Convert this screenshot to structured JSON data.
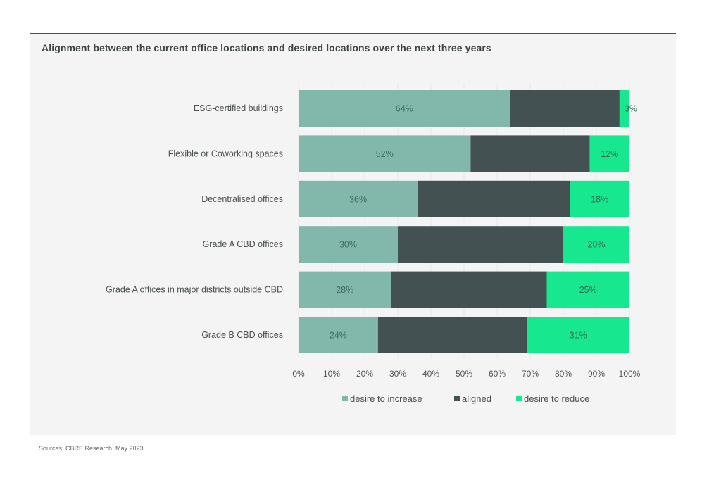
{
  "chart_data": {
    "type": "bar",
    "orientation": "horizontal",
    "stacked": true,
    "title": "Alignment between the current office locations and desired locations over the next three years",
    "categories": [
      "ESG-certified buildings",
      "Flexible or Coworking spaces",
      "Decentralised offices",
      "Grade A CBD offices",
      "Grade A offices in major districts outside CBD",
      "Grade B CBD offices"
    ],
    "series": [
      {
        "name": "desire to increase",
        "color": "#82b8ac",
        "values": [
          64,
          52,
          36,
          30,
          28,
          24
        ],
        "labels": [
          "64%",
          "52%",
          "36%",
          "30%",
          "28%",
          "24%"
        ]
      },
      {
        "name": "aligned",
        "color": "#435152",
        "values": [
          33,
          36,
          46,
          50,
          47,
          45
        ],
        "labels": [
          "",
          "",
          "",
          "",
          "",
          ""
        ]
      },
      {
        "name": "desire to reduce",
        "color": "#17e88f",
        "values": [
          3,
          12,
          18,
          20,
          25,
          31
        ],
        "labels": [
          "3%",
          "12%",
          "18%",
          "20%",
          "25%",
          "31%"
        ]
      }
    ],
    "xlabel": "",
    "ylabel": "",
    "xlim": [
      0,
      100
    ],
    "xticks": [
      "0%",
      "10%",
      "20%",
      "30%",
      "40%",
      "50%",
      "60%",
      "70%",
      "80%",
      "90%",
      "100%"
    ],
    "grid": true,
    "legend_position": "bottom"
  },
  "source": "Sources: CBRE Research, May 2023."
}
